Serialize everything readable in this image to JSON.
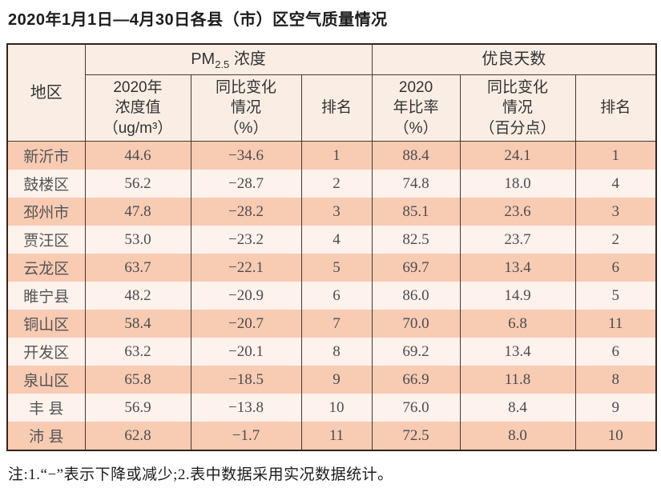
{
  "title": "2020年1月1日—4月30日各县（市）区空气质量情况",
  "table": {
    "header": {
      "region": "地区",
      "pm25_group": {
        "prefix": "PM",
        "sub": "2.5",
        "suffix": " 浓度"
      },
      "good_days_group": "优良天数",
      "sub_headers": [
        "2020年\n浓度值\n（ug/m³）",
        "同比变化\n情况\n（%）",
        "排名",
        "2020\n年比率\n（%）",
        "同比变化\n情况\n（百分点）",
        "排名"
      ]
    },
    "row_keys": [
      "region",
      "pm25_value",
      "pm25_change",
      "pm25_rank",
      "ratio_value",
      "ratio_change",
      "ratio_rank"
    ],
    "rows": [
      {
        "region": "新沂市",
        "pm25_value": "44.6",
        "pm25_change": "−34.6",
        "pm25_rank": "1",
        "ratio_value": "88.4",
        "ratio_change": "24.1",
        "ratio_rank": "1"
      },
      {
        "region": "鼓楼区",
        "pm25_value": "56.2",
        "pm25_change": "−28.7",
        "pm25_rank": "2",
        "ratio_value": "74.8",
        "ratio_change": "18.0",
        "ratio_rank": "4"
      },
      {
        "region": "邳州市",
        "pm25_value": "47.8",
        "pm25_change": "−28.2",
        "pm25_rank": "3",
        "ratio_value": "85.1",
        "ratio_change": "23.6",
        "ratio_rank": "3"
      },
      {
        "region": "贾汪区",
        "pm25_value": "53.0",
        "pm25_change": "−23.2",
        "pm25_rank": "4",
        "ratio_value": "82.5",
        "ratio_change": "23.7",
        "ratio_rank": "2"
      },
      {
        "region": "云龙区",
        "pm25_value": "63.7",
        "pm25_change": "−22.1",
        "pm25_rank": "5",
        "ratio_value": "69.7",
        "ratio_change": "13.4",
        "ratio_rank": "6"
      },
      {
        "region": "睢宁县",
        "pm25_value": "48.2",
        "pm25_change": "−20.9",
        "pm25_rank": "6",
        "ratio_value": "86.0",
        "ratio_change": "14.9",
        "ratio_rank": "5"
      },
      {
        "region": "铜山区",
        "pm25_value": "58.4",
        "pm25_change": "−20.7",
        "pm25_rank": "7",
        "ratio_value": "70.0",
        "ratio_change": "6.8",
        "ratio_rank": "11"
      },
      {
        "region": "开发区",
        "pm25_value": "63.2",
        "pm25_change": "−20.1",
        "pm25_rank": "8",
        "ratio_value": "69.2",
        "ratio_change": "13.4",
        "ratio_rank": "6"
      },
      {
        "region": "泉山区",
        "pm25_value": "65.8",
        "pm25_change": "−18.5",
        "pm25_rank": "9",
        "ratio_value": "66.9",
        "ratio_change": "11.8",
        "ratio_rank": "8"
      },
      {
        "region": "丰 县",
        "pm25_value": "56.9",
        "pm25_change": "−13.8",
        "pm25_rank": "10",
        "ratio_value": "76.0",
        "ratio_change": "8.4",
        "ratio_rank": "9"
      },
      {
        "region": "沛 县",
        "pm25_value": "62.8",
        "pm25_change": "−1.7",
        "pm25_rank": "11",
        "ratio_value": "72.5",
        "ratio_change": "8.0",
        "ratio_rank": "10"
      }
    ]
  },
  "footnote": "注:1.“−”表示下降或减少;2.表中数据采用实况数据统计。",
  "colors": {
    "row_odd": "#f8cbb3",
    "row_even": "#fdf2ec",
    "header_bg": "#faeee4",
    "border": "#4a372e",
    "outer_border": "#33241e",
    "data_text": "#4d4d4d"
  }
}
